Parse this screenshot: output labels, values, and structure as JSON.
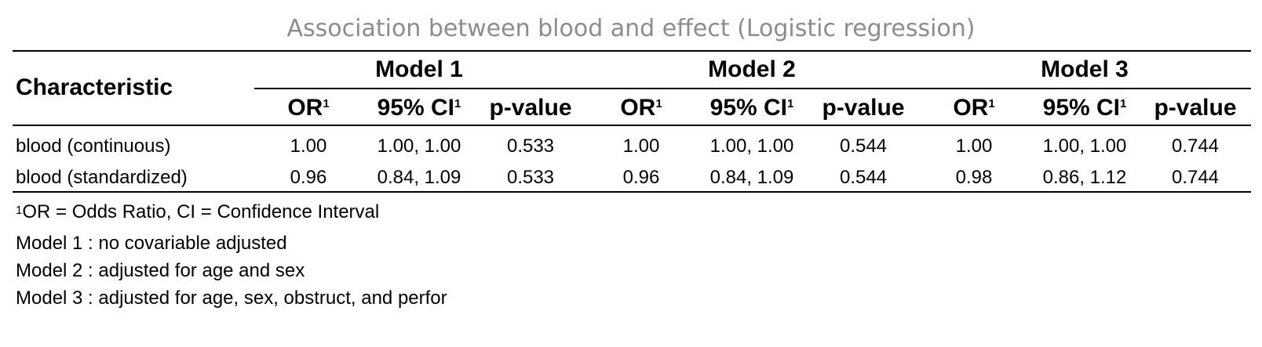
{
  "title": "Association between blood and effect (Logistic regression)",
  "header": {
    "characteristic_label": "Characteristic",
    "models": [
      "Model 1",
      "Model 2",
      "Model 3"
    ],
    "columns": [
      {
        "label": "OR",
        "sup": "1"
      },
      {
        "label": "95% CI",
        "sup": "1"
      },
      {
        "label": "p-value",
        "sup": ""
      }
    ]
  },
  "rows": [
    {
      "label": "blood (continuous)",
      "cells": [
        "1.00",
        "1.00, 1.00",
        "0.533",
        "1.00",
        "1.00, 1.00",
        "0.544",
        "1.00",
        "1.00, 1.00",
        "0.744"
      ]
    },
    {
      "label": "blood (standardized)",
      "cells": [
        "0.96",
        "0.84, 1.09",
        "0.533",
        "0.96",
        "0.84, 1.09",
        "0.544",
        "0.98",
        "0.86, 1.12",
        "0.744"
      ]
    }
  ],
  "footnotes": {
    "abbrev": {
      "sup": "1",
      "text": "OR = Odds Ratio, CI = Confidence Interval"
    },
    "notes": [
      "Model 1 : no covariable adjusted",
      "Model 2 : adjusted for age and sex",
      "Model 3 : adjusted for age, sex, obstruct, and perfor"
    ]
  }
}
